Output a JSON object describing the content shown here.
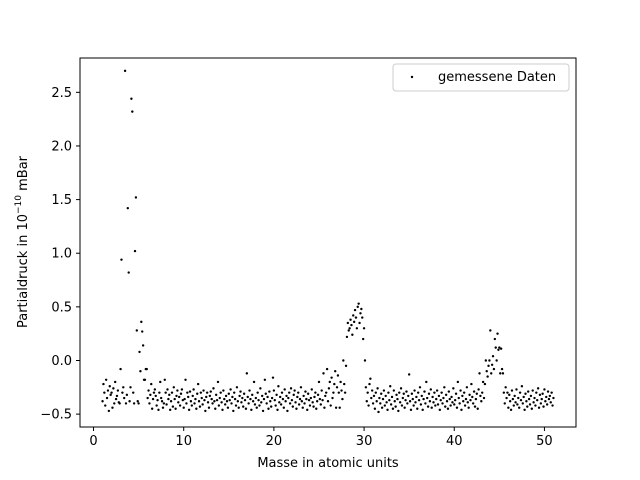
{
  "chart_data": {
    "type": "scatter",
    "title": "",
    "xlabel": "Masse in atomic units",
    "ylabel_prefix": "Partialdruck in 10",
    "ylabel_exponent": "−10",
    "ylabel_suffix": " mBar",
    "xlim": [
      -1.5,
      53.5
    ],
    "ylim": [
      -0.62,
      2.82
    ],
    "x_ticks": [
      0,
      10,
      20,
      30,
      40,
      50
    ],
    "x_tick_labels": [
      "0",
      "10",
      "20",
      "30",
      "40",
      "50"
    ],
    "y_ticks": [
      -0.5,
      0.0,
      0.5,
      1.0,
      1.5,
      2.0,
      2.5
    ],
    "y_tick_labels": [
      "−0.5",
      "0.0",
      "0.5",
      "1.0",
      "1.5",
      "2.0",
      "2.5"
    ],
    "grid": false,
    "legend_position": "top-right",
    "series": [
      {
        "name": "gemessene Daten",
        "color": "#000000",
        "marker": "dot",
        "x_start": 1.0,
        "x_step": 0.1,
        "y": [
          -0.38,
          -0.22,
          -0.3,
          -0.42,
          -0.18,
          -0.35,
          -0.28,
          -0.47,
          -0.24,
          -0.32,
          -0.3,
          -0.44,
          -0.26,
          -0.4,
          -0.2,
          -0.36,
          -0.33,
          -0.28,
          -0.39,
          -0.4,
          -0.08,
          0.94,
          -0.3,
          -0.25,
          -0.35,
          2.7,
          -0.4,
          -0.32,
          1.42,
          0.82,
          -0.38,
          -0.25,
          2.44,
          2.32,
          -0.3,
          -0.4,
          1.02,
          1.52,
          0.28,
          -0.38,
          -0.4,
          0.08,
          -0.1,
          0.36,
          0.27,
          0.14,
          -0.18,
          -0.18,
          -0.08,
          -0.08,
          -0.35,
          -0.28,
          -0.4,
          -0.32,
          -0.22,
          -0.45,
          -0.36,
          -0.3,
          -0.27,
          -0.33,
          -0.42,
          -0.37,
          -0.46,
          -0.3,
          -0.2,
          -0.35,
          -0.38,
          -0.44,
          -0.4,
          -0.18,
          -0.3,
          -0.41,
          -0.27,
          -0.36,
          -0.32,
          -0.46,
          -0.38,
          -0.3,
          -0.43,
          -0.25,
          -0.36,
          -0.45,
          -0.33,
          -0.28,
          -0.39,
          -0.34,
          -0.42,
          -0.31,
          -0.27,
          -0.37,
          -0.44,
          -0.36,
          -0.18,
          -0.4,
          -0.3,
          -0.34,
          -0.46,
          -0.29,
          -0.38,
          -0.42,
          -0.33,
          -0.27,
          -0.4,
          -0.36,
          -0.45,
          -0.31,
          -0.22,
          -0.38,
          -0.43,
          -0.3,
          -0.35,
          -0.41,
          -0.28,
          -0.37,
          -0.47,
          -0.34,
          -0.3,
          -0.39,
          -0.44,
          -0.33,
          -0.29,
          -0.36,
          -0.4,
          -0.26,
          -0.38,
          -0.45,
          -0.32,
          -0.37,
          -0.2,
          -0.42,
          -0.35,
          -0.3,
          -0.39,
          -0.46,
          -0.28,
          -0.36,
          -0.41,
          -0.33,
          -0.38,
          -0.44,
          -0.31,
          -0.37,
          -0.27,
          -0.4,
          -0.34,
          -0.47,
          -0.3,
          -0.36,
          -0.42,
          -0.25,
          -0.38,
          -0.44,
          -0.33,
          -0.29,
          -0.39,
          -0.35,
          -0.43,
          -0.31,
          -0.37,
          -0.45,
          -0.12,
          -0.34,
          -0.4,
          -0.28,
          -0.36,
          -0.46,
          -0.32,
          -0.38,
          -0.2,
          -0.41,
          -0.35,
          -0.44,
          -0.3,
          -0.37,
          -0.42,
          -0.26,
          -0.39,
          -0.33,
          -0.47,
          -0.36,
          -0.18,
          -0.31,
          -0.4,
          -0.34,
          -0.45,
          -0.29,
          -0.38,
          -0.43,
          -0.35,
          -0.16,
          -0.28,
          -0.37,
          -0.42,
          -0.32,
          -0.46,
          -0.24,
          -0.39,
          -0.34,
          -0.41,
          -0.3,
          -0.36,
          -0.44,
          -0.27,
          -0.38,
          -0.33,
          -0.47,
          -0.35,
          -0.3,
          -0.4,
          -0.26,
          -0.37,
          -0.43,
          -0.32,
          -0.28,
          -0.39,
          -0.45,
          -0.34,
          -0.3,
          -0.41,
          -0.36,
          -0.25,
          -0.38,
          -0.44,
          -0.33,
          -0.4,
          -0.29,
          -0.36,
          -0.46,
          -0.31,
          -0.37,
          -0.42,
          -0.35,
          -0.27,
          -0.39,
          -0.43,
          -0.34,
          -0.3,
          -0.45,
          -0.38,
          -0.32,
          -0.2,
          -0.36,
          -0.41,
          -0.28,
          -0.37,
          -0.12,
          -0.44,
          -0.33,
          -0.3,
          -0.08,
          -0.38,
          -0.26,
          -0.2,
          -0.42,
          -0.16,
          -0.35,
          -0.3,
          -0.22,
          -0.1,
          -0.44,
          -0.25,
          -0.14,
          -0.3,
          -0.44,
          -0.2,
          -0.28,
          -0.36,
          0.0,
          -0.22,
          -0.3,
          -0.05,
          0.22,
          0.35,
          0.28,
          0.3,
          0.38,
          0.33,
          0.24,
          0.42,
          0.36,
          0.47,
          0.4,
          0.3,
          0.5,
          0.53,
          0.35,
          0.44,
          0.48,
          0.4,
          0.2,
          0.3,
          0.0,
          -0.25,
          -0.38,
          -0.3,
          -0.42,
          -0.22,
          -0.17,
          -0.35,
          -0.28,
          -0.4,
          -0.33,
          -0.45,
          -0.3,
          -0.38,
          -0.26,
          -0.48,
          -0.35,
          -0.4,
          -0.31,
          -0.44,
          -0.36,
          -0.28,
          -0.42,
          -0.33,
          -0.39,
          -0.46,
          -0.3,
          -0.37,
          -0.24,
          -0.41,
          -0.34,
          -0.45,
          -0.28,
          -0.38,
          -0.43,
          -0.32,
          -0.36,
          -0.47,
          -0.3,
          -0.39,
          -0.26,
          -0.42,
          -0.35,
          -0.31,
          -0.44,
          -0.37,
          -0.29,
          -0.4,
          -0.33,
          -0.13,
          -0.38,
          -0.46,
          -0.31,
          -0.36,
          -0.42,
          -0.28,
          -0.39,
          -0.34,
          -0.45,
          -0.3,
          -0.37,
          -0.25,
          -0.41,
          -0.33,
          -0.46,
          -0.36,
          -0.29,
          -0.4,
          -0.2,
          -0.35,
          -0.43,
          -0.31,
          -0.38,
          -0.27,
          -0.44,
          -0.34,
          -0.39,
          -0.3,
          -0.42,
          -0.36,
          -0.28,
          -0.41,
          -0.33,
          -0.46,
          -0.37,
          -0.3,
          -0.4,
          -0.35,
          -0.25,
          -0.43,
          -0.32,
          -0.38,
          -0.45,
          -0.29,
          -0.36,
          -0.42,
          -0.34,
          -0.39,
          -0.26,
          -0.41,
          -0.37,
          -0.31,
          -0.44,
          -0.2,
          -0.35,
          -0.4,
          -0.28,
          -0.46,
          -0.33,
          -0.38,
          -0.3,
          -0.42,
          -0.36,
          -0.25,
          -0.39,
          -0.44,
          -0.32,
          -0.37,
          -0.22,
          -0.34,
          -0.4,
          -0.29,
          -0.43,
          -0.36,
          -0.31,
          -0.45,
          -0.27,
          -0.12,
          -0.33,
          -0.38,
          -0.3,
          -0.2,
          -0.35,
          -0.22,
          0.0,
          -0.1,
          -0.15,
          -0.05,
          0.0,
          0.28,
          -0.12,
          -0.04,
          0.04,
          -0.08,
          0.2,
          0.12,
          0.0,
          0.25,
          0.1,
          0.12,
          -0.12,
          0.11,
          -0.08,
          -0.12,
          -0.3,
          -0.4,
          -0.25,
          -0.35,
          -0.3,
          -0.44,
          -0.32,
          -0.38,
          -0.46,
          -0.28,
          -0.36,
          -0.42,
          -0.33,
          -0.39,
          -0.27,
          -0.41,
          -0.35,
          -0.44,
          -0.3,
          -0.37,
          -0.24,
          -0.4,
          -0.34,
          -0.46,
          -0.31,
          -0.38,
          -0.43,
          -0.29,
          -0.36,
          -0.41,
          -0.33,
          -0.45,
          -0.28,
          -0.39,
          -0.35,
          -0.42,
          -0.3,
          -0.37,
          -0.26,
          -0.44,
          -0.32,
          -0.4,
          -0.36,
          -0.31,
          -0.43,
          -0.27,
          -0.38,
          -0.34,
          -0.41,
          -0.29,
          -0.36,
          -0.33,
          -0.39,
          -0.3,
          -0.42,
          -0.35
        ]
      }
    ]
  }
}
